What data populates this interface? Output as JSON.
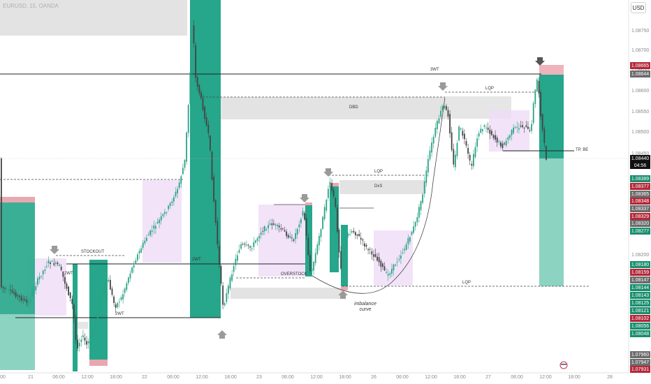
{
  "header": {
    "symbol": "EURUSD, 15, OANDA",
    "currency": "USD"
  },
  "colors": {
    "bull": "#2aa386",
    "bear": "#444444",
    "zone_green": "#26a68a",
    "zone_gray": "#e2e2e2",
    "zone_purple": "#efdcf7",
    "tag_red": "#b2283a",
    "tag_green": "#1a8d6d",
    "tag_gray": "#6b6b6b",
    "tag_black": "#111111"
  },
  "price_axis": {
    "ticks": [
      "1.08750",
      "1.08700",
      "1.08650",
      "1.08600",
      "1.08550",
      "1.08500",
      "1.08450",
      "1.08200"
    ]
  },
  "price_tags": [
    {
      "value": "1.08665",
      "tone": "red"
    },
    {
      "value": "1.08644",
      "tone": "gray"
    },
    {
      "value": "1.08440",
      "tone": "black"
    },
    {
      "value": "04:56",
      "tone": "black"
    },
    {
      "value": "1.08389",
      "tone": "green"
    },
    {
      "value": "1.08377",
      "tone": "red"
    },
    {
      "value": "1.08365",
      "tone": "gray"
    },
    {
      "value": "1.08348",
      "tone": "red"
    },
    {
      "value": "1.08337",
      "tone": "gray"
    },
    {
      "value": "1.08329",
      "tone": "red"
    },
    {
      "value": "1.08320",
      "tone": "gray"
    },
    {
      "value": "1.08277",
      "tone": "green"
    },
    {
      "value": "1.08180",
      "tone": "green"
    },
    {
      "value": "1.08159",
      "tone": "red"
    },
    {
      "value": "1.08147",
      "tone": "gray"
    },
    {
      "value": "1.08144",
      "tone": "green"
    },
    {
      "value": "1.08143",
      "tone": "green"
    },
    {
      "value": "1.08125",
      "tone": "green"
    },
    {
      "value": "1.08121",
      "tone": "green"
    },
    {
      "value": "1.08102",
      "tone": "red"
    },
    {
      "value": "1.08056",
      "tone": "green"
    },
    {
      "value": "1.08048",
      "tone": "green"
    },
    {
      "value": "1.07960",
      "tone": "gray"
    },
    {
      "value": "1.07947",
      "tone": "gray"
    },
    {
      "value": "1.07931",
      "tone": "red"
    }
  ],
  "time_axis": {
    "labels": [
      "00",
      "21",
      "06:00",
      "12:00",
      "18:00",
      "22",
      "06:00",
      "12:00",
      "18:00",
      "23",
      "06:00",
      "12:00",
      "18:00",
      "26",
      "06:00",
      "12:00",
      "18:00",
      "27",
      "06:00",
      "12:00",
      "18:00",
      "28"
    ]
  },
  "annotations": {
    "w3": "3WT",
    "dbd": "DBD",
    "lqp_top": "LQP",
    "lqp_mid": "LQP",
    "dxs": "DxS",
    "stockout": "STOCKOUT",
    "wt2_left": "2WT",
    "wt2_mid": "2WT",
    "wt2_low": "2WT",
    "overstock": "OVERSTOCK",
    "lqp_bottom": "LQP",
    "tp_be": "TP, BE",
    "imbalance": "imbalance",
    "curve": "curve"
  }
}
